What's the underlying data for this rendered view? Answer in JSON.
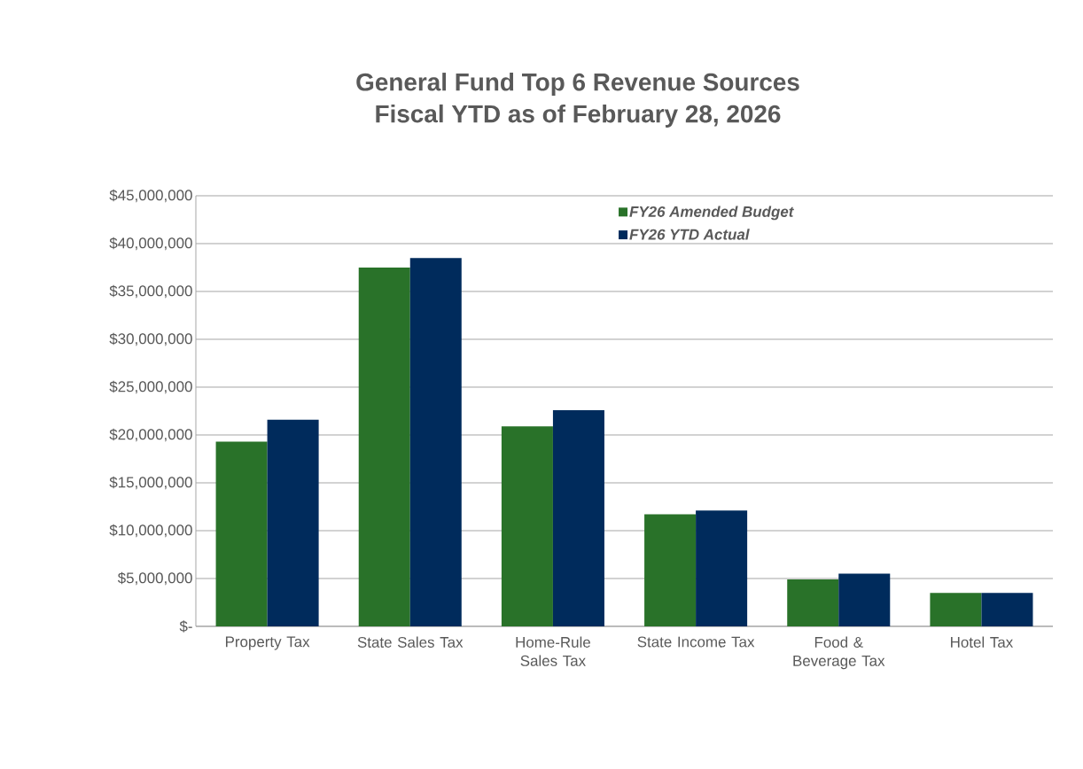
{
  "chart_data": {
    "type": "bar",
    "title": "General Fund Top 6 Revenue Sources\nFiscal YTD as of February 28, 2026",
    "categories": [
      "Property Tax",
      "State Sales Tax",
      "Home-Rule Sales Tax",
      "State Income Tax",
      "Food & Beverage Tax",
      "Hotel Tax"
    ],
    "series": [
      {
        "name": "FY26 Amended Budget",
        "color": "#297229",
        "values": [
          19300000,
          37500000,
          20900000,
          11700000,
          4900000,
          3500000
        ]
      },
      {
        "name": "FY26 YTD Actual",
        "color": "#002b5c",
        "values": [
          21600000,
          38500000,
          22600000,
          12100000,
          5500000,
          3500000
        ]
      }
    ],
    "ylim": [
      0,
      45000000
    ],
    "yticks": [
      {
        "value": 0,
        "label": "$-"
      },
      {
        "value": 5000000,
        "label": "$5,000,000"
      },
      {
        "value": 10000000,
        "label": "$10,000,000"
      },
      {
        "value": 15000000,
        "label": "$15,000,000"
      },
      {
        "value": 20000000,
        "label": "$20,000,000"
      },
      {
        "value": 25000000,
        "label": "$25,000,000"
      },
      {
        "value": 30000000,
        "label": "$30,000,000"
      },
      {
        "value": 35000000,
        "label": "$35,000,000"
      },
      {
        "value": 40000000,
        "label": "$40,000,000"
      },
      {
        "value": 45000000,
        "label": "$45,000,000"
      }
    ],
    "grid": "y",
    "legend": "top right"
  }
}
